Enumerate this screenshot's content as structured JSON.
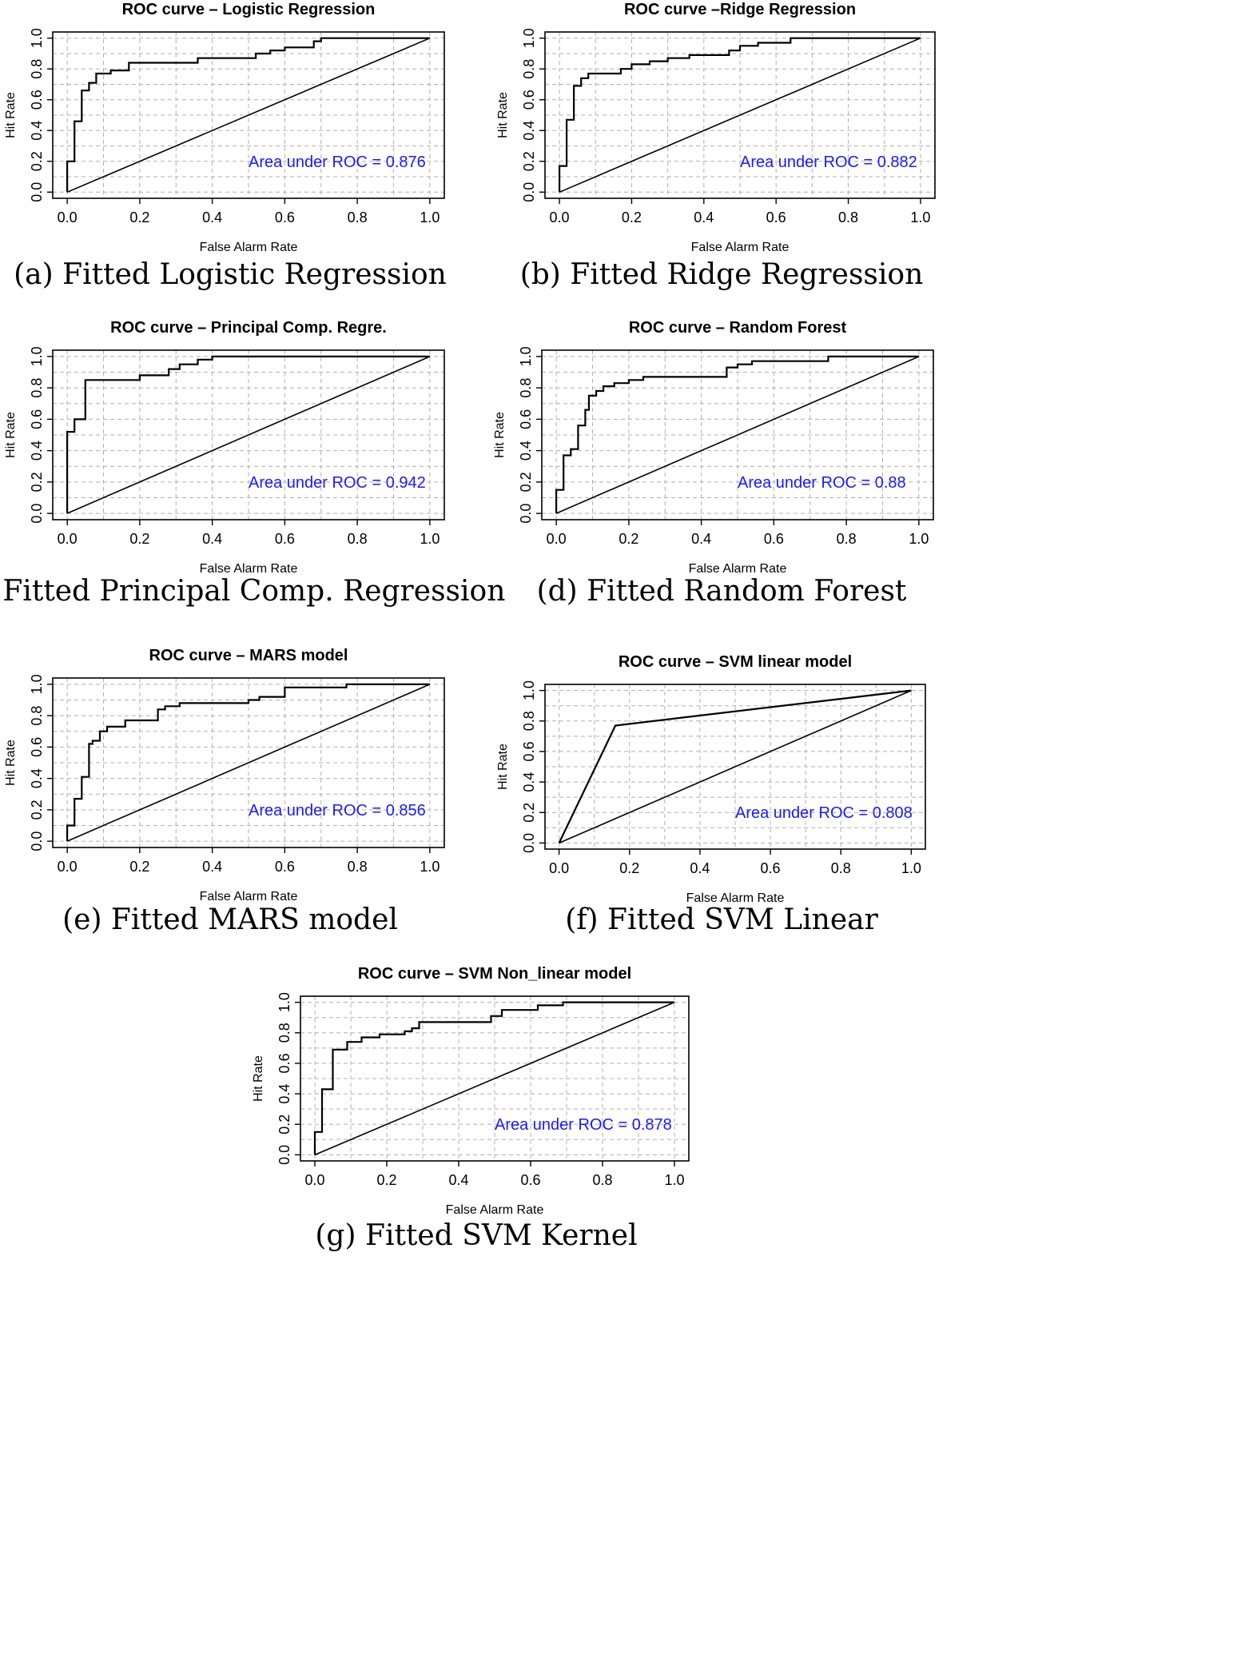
{
  "chart_data": [
    {
      "id": "a",
      "type": "line",
      "title": "ROC curve – Logistic Regression",
      "xlabel": "False Alarm Rate",
      "ylabel": "Hit Rate",
      "xlim": [
        0,
        1
      ],
      "ylim": [
        0,
        1
      ],
      "ticks": [
        "0.0",
        "0.2",
        "0.4",
        "0.6",
        "0.8",
        "1.0"
      ],
      "auc_label": "Area under ROC =",
      "auc_value": "0.876",
      "caption": "(a) Fitted Logistic Regression",
      "series": [
        {
          "name": "ROC",
          "x": [
            0,
            0,
            0.02,
            0.02,
            0.04,
            0.04,
            0.06,
            0.06,
            0.08,
            0.08,
            0.12,
            0.12,
            0.17,
            0.17,
            0.36,
            0.36,
            0.52,
            0.52,
            0.56,
            0.56,
            0.6,
            0.6,
            0.68,
            0.68,
            0.7,
            0.7,
            1.0
          ],
          "y": [
            0,
            0.2,
            0.2,
            0.46,
            0.46,
            0.66,
            0.66,
            0.71,
            0.71,
            0.77,
            0.77,
            0.79,
            0.79,
            0.84,
            0.84,
            0.87,
            0.87,
            0.9,
            0.9,
            0.92,
            0.92,
            0.94,
            0.94,
            0.98,
            0.98,
            1.0,
            1.0
          ]
        },
        {
          "name": "Chance",
          "x": [
            0,
            1
          ],
          "y": [
            0,
            1
          ]
        }
      ]
    },
    {
      "id": "b",
      "type": "line",
      "title": "ROC curve –Ridge Regression",
      "xlabel": "False Alarm Rate",
      "ylabel": "Hit Rate",
      "xlim": [
        0,
        1
      ],
      "ylim": [
        0,
        1
      ],
      "ticks": [
        "0.0",
        "0.2",
        "0.4",
        "0.6",
        "0.8",
        "1.0"
      ],
      "auc_label": "Area under ROC =",
      "auc_value": "0.882",
      "caption": "(b) Fitted Ridge Regression",
      "series": [
        {
          "name": "ROC",
          "x": [
            0,
            0,
            0.02,
            0.02,
            0.04,
            0.04,
            0.06,
            0.06,
            0.08,
            0.08,
            0.17,
            0.17,
            0.2,
            0.2,
            0.25,
            0.25,
            0.3,
            0.3,
            0.36,
            0.36,
            0.47,
            0.47,
            0.5,
            0.5,
            0.55,
            0.55,
            0.64,
            0.64,
            1.0
          ],
          "y": [
            0,
            0.17,
            0.17,
            0.47,
            0.47,
            0.69,
            0.69,
            0.74,
            0.74,
            0.77,
            0.77,
            0.8,
            0.8,
            0.83,
            0.83,
            0.85,
            0.85,
            0.87,
            0.87,
            0.89,
            0.89,
            0.92,
            0.92,
            0.95,
            0.95,
            0.97,
            0.97,
            1.0,
            1.0
          ]
        },
        {
          "name": "Chance",
          "x": [
            0,
            1
          ],
          "y": [
            0,
            1
          ]
        }
      ]
    },
    {
      "id": "c",
      "type": "line",
      "title": "ROC curve – Principal Comp. Regre.",
      "xlabel": "False Alarm Rate",
      "ylabel": "Hit Rate",
      "xlim": [
        0,
        1
      ],
      "ylim": [
        0,
        1
      ],
      "ticks": [
        "0.0",
        "0.2",
        "0.4",
        "0.6",
        "0.8",
        "1.0"
      ],
      "auc_label": "Area under ROC =",
      "auc_value": "0.942",
      "caption": "(c) Fitted Principal Comp. Regression",
      "series": [
        {
          "name": "ROC",
          "x": [
            0,
            0,
            0.02,
            0.02,
            0.05,
            0.05,
            0.2,
            0.2,
            0.28,
            0.28,
            0.31,
            0.31,
            0.36,
            0.36,
            0.4,
            0.4,
            1.0
          ],
          "y": [
            0,
            0.52,
            0.52,
            0.6,
            0.6,
            0.85,
            0.85,
            0.88,
            0.88,
            0.92,
            0.92,
            0.95,
            0.95,
            0.98,
            0.98,
            1.0,
            1.0
          ]
        },
        {
          "name": "Chance",
          "x": [
            0,
            1
          ],
          "y": [
            0,
            1
          ]
        }
      ]
    },
    {
      "id": "d",
      "type": "line",
      "title": "ROC curve – Random Forest",
      "xlabel": "False Alarm Rate",
      "ylabel": "Hit Rate",
      "xlim": [
        0,
        1
      ],
      "ylim": [
        0,
        1
      ],
      "ticks": [
        "0.0",
        "0.2",
        "0.4",
        "0.6",
        "0.8",
        "1.0"
      ],
      "auc_label": "Area under ROC =",
      "auc_value": "0.88",
      "caption": "(d) Fitted Random Forest",
      "series": [
        {
          "name": "ROC",
          "x": [
            0,
            0,
            0.02,
            0.02,
            0.04,
            0.04,
            0.06,
            0.06,
            0.08,
            0.08,
            0.09,
            0.09,
            0.11,
            0.11,
            0.13,
            0.13,
            0.16,
            0.16,
            0.2,
            0.2,
            0.24,
            0.24,
            0.47,
            0.47,
            0.5,
            0.5,
            0.54,
            0.54,
            0.75,
            0.75,
            1.0
          ],
          "y": [
            0,
            0.15,
            0.15,
            0.37,
            0.37,
            0.41,
            0.41,
            0.56,
            0.56,
            0.66,
            0.66,
            0.75,
            0.75,
            0.78,
            0.78,
            0.81,
            0.81,
            0.83,
            0.83,
            0.85,
            0.85,
            0.87,
            0.87,
            0.93,
            0.93,
            0.95,
            0.95,
            0.97,
            0.97,
            1.0,
            1.0
          ]
        },
        {
          "name": "Chance",
          "x": [
            0,
            1
          ],
          "y": [
            0,
            1
          ]
        }
      ]
    },
    {
      "id": "e",
      "type": "line",
      "title": "ROC curve – MARS model",
      "xlabel": "False Alarm Rate",
      "ylabel": "Hit Rate",
      "xlim": [
        0,
        1
      ],
      "ylim": [
        0,
        1
      ],
      "ticks": [
        "0.0",
        "0.2",
        "0.4",
        "0.6",
        "0.8",
        "1.0"
      ],
      "auc_label": "Area under ROC =",
      "auc_value": "0.856",
      "caption": "(e) Fitted MARS model",
      "series": [
        {
          "name": "ROC",
          "x": [
            0,
            0,
            0.02,
            0.02,
            0.04,
            0.04,
            0.06,
            0.06,
            0.07,
            0.07,
            0.09,
            0.09,
            0.11,
            0.11,
            0.16,
            0.16,
            0.25,
            0.25,
            0.27,
            0.27,
            0.31,
            0.31,
            0.5,
            0.5,
            0.53,
            0.53,
            0.6,
            0.6,
            0.77,
            0.77,
            1.0
          ],
          "y": [
            0,
            0.1,
            0.1,
            0.27,
            0.27,
            0.41,
            0.41,
            0.62,
            0.62,
            0.64,
            0.64,
            0.7,
            0.7,
            0.73,
            0.73,
            0.77,
            0.77,
            0.84,
            0.84,
            0.86,
            0.86,
            0.88,
            0.88,
            0.9,
            0.9,
            0.92,
            0.92,
            0.98,
            0.98,
            1.0,
            1.0
          ]
        },
        {
          "name": "Chance",
          "x": [
            0,
            1
          ],
          "y": [
            0,
            1
          ]
        }
      ]
    },
    {
      "id": "f",
      "type": "line",
      "title": "ROC curve – SVM linear model",
      "xlabel": "False Alarm Rate",
      "ylabel": "Hit Rate",
      "xlim": [
        0,
        1
      ],
      "ylim": [
        0,
        1
      ],
      "ticks": [
        "0.0",
        "0.2",
        "0.4",
        "0.6",
        "0.8",
        "1.0"
      ],
      "auc_label": "Area under ROC =",
      "auc_value": "0.808",
      "caption": "(f) Fitted SVM Linear",
      "series": [
        {
          "name": "ROC",
          "x": [
            0,
            0.16,
            1.0
          ],
          "y": [
            0,
            0.77,
            1.0
          ]
        },
        {
          "name": "Chance",
          "x": [
            0,
            1
          ],
          "y": [
            0,
            1
          ]
        }
      ]
    },
    {
      "id": "g",
      "type": "line",
      "title": "ROC curve – SVM Non_linear model",
      "xlabel": "False Alarm Rate",
      "ylabel": "Hit Rate",
      "xlim": [
        0,
        1
      ],
      "ylim": [
        0,
        1
      ],
      "ticks": [
        "0.0",
        "0.2",
        "0.4",
        "0.6",
        "0.8",
        "1.0"
      ],
      "auc_label": "Area under ROC =",
      "auc_value": "0.878",
      "caption": "(g) Fitted SVM Kernel",
      "series": [
        {
          "name": "ROC",
          "x": [
            0,
            0,
            0.02,
            0.02,
            0.05,
            0.05,
            0.09,
            0.09,
            0.13,
            0.13,
            0.18,
            0.18,
            0.25,
            0.25,
            0.27,
            0.27,
            0.29,
            0.29,
            0.49,
            0.49,
            0.52,
            0.52,
            0.62,
            0.62,
            0.69,
            0.69,
            1.0
          ],
          "y": [
            0,
            0.15,
            0.15,
            0.43,
            0.43,
            0.69,
            0.69,
            0.74,
            0.74,
            0.77,
            0.77,
            0.79,
            0.79,
            0.81,
            0.81,
            0.83,
            0.83,
            0.87,
            0.87,
            0.91,
            0.91,
            0.95,
            0.95,
            0.98,
            0.98,
            1.0,
            1.0
          ]
        },
        {
          "name": "Chance",
          "x": [
            0,
            1
          ],
          "y": [
            0,
            1
          ]
        }
      ]
    }
  ]
}
